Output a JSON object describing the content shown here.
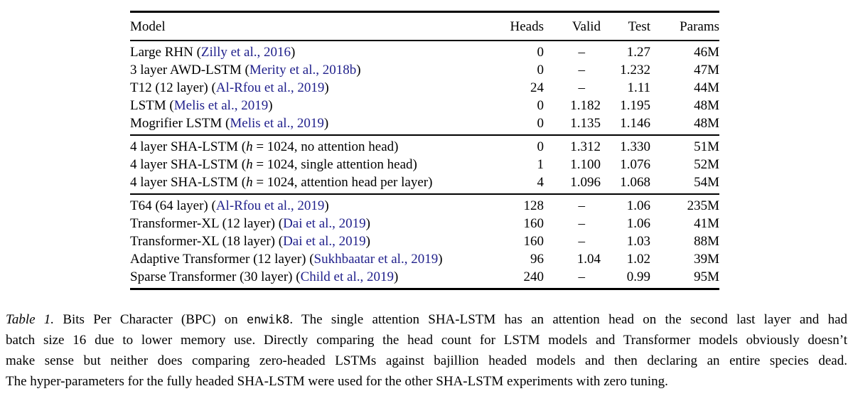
{
  "colors": {
    "text": "#000000",
    "link": "#21218c",
    "background": "#ffffff"
  },
  "table": {
    "headers": [
      "Model",
      "Heads",
      "Valid",
      "Test",
      "Params"
    ],
    "missing_value": "–",
    "groups": [
      [
        {
          "model": [
            {
              "t": "Large RHN ("
            },
            {
              "t": "Zilly et al., 2016",
              "style": "link"
            },
            {
              "t": ")"
            }
          ],
          "heads": "0",
          "valid": "–",
          "test": "1.27",
          "params": "46M"
        },
        {
          "model": [
            {
              "t": "3 layer AWD-LSTM ("
            },
            {
              "t": "Merity et al., 2018b",
              "style": "link"
            },
            {
              "t": ")"
            }
          ],
          "heads": "0",
          "valid": "–",
          "test": "1.232",
          "params": "47M"
        },
        {
          "model": [
            {
              "t": "T12 (12 layer) ("
            },
            {
              "t": "Al-Rfou et al., 2019",
              "style": "link"
            },
            {
              "t": ")"
            }
          ],
          "heads": "24",
          "valid": "–",
          "test": "1.11",
          "params": "44M"
        },
        {
          "model": [
            {
              "t": "LSTM ("
            },
            {
              "t": "Melis et al., 2019",
              "style": "link"
            },
            {
              "t": ")"
            }
          ],
          "heads": "0",
          "valid": "1.182",
          "test": "1.195",
          "params": "48M"
        },
        {
          "model": [
            {
              "t": "Mogrifier LSTM ("
            },
            {
              "t": "Melis et al., 2019",
              "style": "link"
            },
            {
              "t": ")"
            }
          ],
          "heads": "0",
          "valid": "1.135",
          "test": "1.146",
          "params": "48M"
        }
      ],
      [
        {
          "model": [
            {
              "t": "4 layer SHA-LSTM ("
            },
            {
              "t": "h",
              "style": "italic"
            },
            {
              "t": " = 1024, no attention head)"
            }
          ],
          "heads": "0",
          "valid": "1.312",
          "test": "1.330",
          "params": "51M"
        },
        {
          "model": [
            {
              "t": "4 layer SHA-LSTM ("
            },
            {
              "t": "h",
              "style": "italic"
            },
            {
              "t": " = 1024, single attention head)"
            }
          ],
          "heads": "1",
          "valid": "1.100",
          "test": "1.076",
          "params": "52M"
        },
        {
          "model": [
            {
              "t": "4 layer SHA-LSTM ("
            },
            {
              "t": "h",
              "style": "italic"
            },
            {
              "t": " = 1024, attention head per layer)"
            }
          ],
          "heads": "4",
          "valid": "1.096",
          "test": "1.068",
          "params": "54M"
        }
      ],
      [
        {
          "model": [
            {
              "t": "T64 (64 layer) ("
            },
            {
              "t": "Al-Rfou et al., 2019",
              "style": "link"
            },
            {
              "t": ")"
            }
          ],
          "heads": "128",
          "valid": "–",
          "test": "1.06",
          "params": "235M"
        },
        {
          "model": [
            {
              "t": "Transformer-XL (12 layer) ("
            },
            {
              "t": "Dai et al., 2019",
              "style": "link"
            },
            {
              "t": ")"
            }
          ],
          "heads": "160",
          "valid": "–",
          "test": "1.06",
          "params": "41M"
        },
        {
          "model": [
            {
              "t": "Transformer-XL (18 layer) ("
            },
            {
              "t": "Dai et al., 2019",
              "style": "link"
            },
            {
              "t": ")"
            }
          ],
          "heads": "160",
          "valid": "–",
          "test": "1.03",
          "params": "88M"
        },
        {
          "model": [
            {
              "t": "Adaptive Transformer (12 layer) ("
            },
            {
              "t": "Sukhbaatar et al., 2019",
              "style": "link"
            },
            {
              "t": ")"
            }
          ],
          "heads": "96",
          "valid": "1.04",
          "test": "1.02",
          "params": "39M"
        },
        {
          "model": [
            {
              "t": "Sparse Transformer (30 layer) ("
            },
            {
              "t": "Child et al., 2019",
              "style": "link"
            },
            {
              "t": ")"
            }
          ],
          "heads": "240",
          "valid": "–",
          "test": "0.99",
          "params": "95M"
        }
      ]
    ]
  },
  "caption": {
    "lines": [
      [
        {
          "t": "Table 1.",
          "style": "italic"
        },
        {
          "t": " Bits Per Character (BPC) on "
        },
        {
          "t": "enwik8",
          "style": "mono"
        },
        {
          "t": ". The single attention SHA-LSTM has an attention head on the second last layer and had"
        }
      ],
      [
        {
          "t": "batch size 16 due to lower memory use. Directly comparing the head count for LSTM models and Transformer models obviously doesn’t"
        }
      ],
      [
        {
          "t": "make sense but neither does comparing zero-headed LSTMs against bajillion headed models and then declaring an entire species dead."
        }
      ],
      [
        {
          "t": "The hyper-parameters for the fully headed SHA-LSTM were used for the other SHA-LSTM experiments with zero tuning."
        }
      ]
    ]
  }
}
